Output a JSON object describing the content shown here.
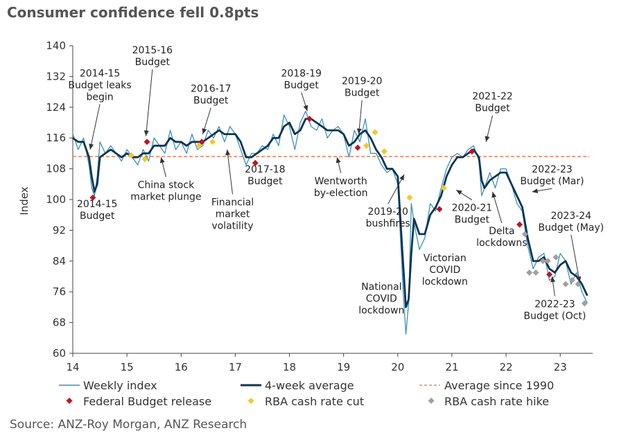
{
  "title": "Consumer confidence fell 0.8pts",
  "source": "Source: ANZ-Roy Morgan, ANZ Research",
  "colors": {
    "weekly": "#3a8fc0",
    "avg4": "#0d3550",
    "average_line": "#e8866a",
    "budget": "#c0141c",
    "cut": "#f3c92a",
    "hike": "#a0a0a0"
  },
  "chart_data": {
    "type": "line",
    "ylabel": "Index",
    "xlabel": "",
    "ylim": [
      60,
      140
    ],
    "xlim": [
      14,
      23.6
    ],
    "yticks": [
      60,
      68,
      76,
      84,
      92,
      100,
      108,
      116,
      124,
      132,
      140
    ],
    "xticks": [
      "14",
      "15",
      "16",
      "17",
      "18",
      "19",
      "20",
      "21",
      "22",
      "23"
    ],
    "grid": false,
    "legend_position": "bottom",
    "average_since_1990": 111.2,
    "series": [
      {
        "name": "Weekly index",
        "x": [
          14.0,
          14.1,
          14.2,
          14.3,
          14.35,
          14.4,
          14.45,
          14.5,
          14.6,
          14.7,
          14.8,
          14.9,
          15.0,
          15.1,
          15.2,
          15.3,
          15.4,
          15.5,
          15.6,
          15.7,
          15.8,
          15.9,
          16.0,
          16.1,
          16.2,
          16.3,
          16.4,
          16.5,
          16.6,
          16.7,
          16.8,
          16.9,
          17.0,
          17.1,
          17.2,
          17.3,
          17.4,
          17.5,
          17.6,
          17.7,
          17.8,
          17.9,
          18.0,
          18.1,
          18.2,
          18.3,
          18.4,
          18.5,
          18.6,
          18.7,
          18.8,
          18.9,
          19.0,
          19.1,
          19.2,
          19.3,
          19.4,
          19.5,
          19.6,
          19.7,
          19.8,
          19.9,
          20.0,
          20.1,
          20.15,
          20.2,
          20.25,
          20.3,
          20.4,
          20.5,
          20.6,
          20.7,
          20.8,
          20.9,
          21.0,
          21.1,
          21.2,
          21.3,
          21.4,
          21.5,
          21.55,
          21.6,
          21.7,
          21.8,
          21.9,
          22.0,
          22.1,
          22.2,
          22.3,
          22.4,
          22.5,
          22.6,
          22.7,
          22.8,
          22.9,
          23.0,
          23.1,
          23.2,
          23.3,
          23.4,
          23.5
        ],
        "values": [
          117,
          113,
          116,
          109,
          103,
          101,
          106,
          115,
          112,
          114,
          112,
          110,
          113,
          111,
          109,
          113,
          110,
          116,
          114,
          112,
          118,
          113,
          115,
          112,
          117,
          113,
          114,
          118,
          116,
          119,
          115,
          119,
          117,
          113,
          109,
          112,
          112,
          114,
          113,
          117,
          114,
          122,
          119,
          113,
          120,
          123,
          119,
          118,
          121,
          116,
          118,
          119,
          117,
          111,
          118,
          115,
          121,
          112,
          112,
          109,
          107,
          108,
          104,
          76,
          65,
          73,
          99,
          94,
          87,
          90,
          99,
          97,
          103,
          108,
          111,
          112,
          111,
          113,
          114,
          110,
          101,
          103,
          107,
          103,
          108,
          108,
          104,
          99,
          97,
          88,
          82,
          85,
          86,
          79,
          80,
          86,
          84,
          78,
          81,
          76,
          73
        ]
      },
      {
        "name": "4-week average",
        "x": [
          14.0,
          14.1,
          14.2,
          14.3,
          14.35,
          14.4,
          14.45,
          14.5,
          14.6,
          14.7,
          14.8,
          14.9,
          15.0,
          15.1,
          15.2,
          15.3,
          15.4,
          15.5,
          15.6,
          15.7,
          15.8,
          15.9,
          16.0,
          16.1,
          16.2,
          16.3,
          16.4,
          16.5,
          16.6,
          16.7,
          16.8,
          16.9,
          17.0,
          17.1,
          17.2,
          17.3,
          17.4,
          17.5,
          17.6,
          17.7,
          17.8,
          17.9,
          18.0,
          18.1,
          18.2,
          18.3,
          18.4,
          18.5,
          18.6,
          18.7,
          18.8,
          18.9,
          19.0,
          19.1,
          19.2,
          19.3,
          19.4,
          19.5,
          19.6,
          19.7,
          19.8,
          19.9,
          20.0,
          20.1,
          20.15,
          20.2,
          20.25,
          20.3,
          20.4,
          20.5,
          20.6,
          20.7,
          20.8,
          20.9,
          21.0,
          21.1,
          21.2,
          21.3,
          21.4,
          21.5,
          21.55,
          21.6,
          21.7,
          21.8,
          21.9,
          22.0,
          22.1,
          22.2,
          22.3,
          22.4,
          22.5,
          22.6,
          22.7,
          22.8,
          22.9,
          23.0,
          23.1,
          23.2,
          23.3,
          23.4,
          23.5
        ],
        "values": [
          116,
          115,
          115,
          111,
          106,
          102,
          104,
          111,
          112,
          113,
          112,
          111,
          112,
          111,
          111,
          112,
          112,
          114,
          114,
          114,
          116,
          115,
          115,
          114,
          115,
          115,
          115,
          116,
          117,
          118,
          117,
          117,
          117,
          115,
          111,
          111,
          112,
          113,
          114,
          116,
          116,
          119,
          120,
          117,
          118,
          121,
          121,
          120,
          119,
          118,
          118,
          118,
          117,
          114,
          115,
          117,
          118,
          116,
          113,
          111,
          108,
          108,
          106,
          83,
          72,
          74,
          86,
          95,
          91,
          91,
          96,
          98,
          101,
          106,
          109,
          111,
          111,
          112,
          113,
          111,
          105,
          103,
          105,
          106,
          107,
          107,
          104,
          101,
          98,
          90,
          84,
          84,
          85,
          82,
          81,
          83,
          84,
          81,
          80,
          78,
          75
        ]
      },
      {
        "name": "Average since 1990"
      },
      {
        "name": "Federal Budget release",
        "x": [
          14.37,
          15.37,
          16.38,
          17.37,
          18.37,
          19.26,
          20.77,
          21.37,
          22.25,
          22.8
        ],
        "values": [
          100.5,
          115,
          115,
          109.5,
          121,
          113.5,
          97.5,
          112.5,
          93.5,
          80.5
        ]
      },
      {
        "name": "RBA cash rate cut",
        "x": [
          15.08,
          15.33,
          16.33,
          16.58,
          19.42,
          19.58,
          19.75,
          20.22,
          20.85
        ],
        "values": [
          111.5,
          110.5,
          114,
          115,
          114,
          117.5,
          112.5,
          100.5,
          103
        ]
      },
      {
        "name": "RBA cash rate hike",
        "x": [
          22.35,
          22.43,
          22.55,
          22.68,
          22.77,
          22.92,
          23.1,
          23.22,
          23.33,
          23.45
        ],
        "values": [
          91,
          81,
          81,
          84,
          84,
          85,
          78,
          79,
          78,
          73
        ]
      }
    ],
    "annotations": [
      {
        "lines": [
          "2014-15",
          "Budget leaks",
          "begin"
        ],
        "x": 14.5,
        "y": 132,
        "arrow_to": [
          14.32,
          113
        ]
      },
      {
        "lines": [
          "2014-15",
          "Budget"
        ],
        "x": 14.45,
        "y": 98,
        "arrow_to": null
      },
      {
        "lines": [
          "2015-16",
          "Budget"
        ],
        "x": 15.47,
        "y": 138,
        "arrow_to": [
          15.35,
          116.5
        ]
      },
      {
        "lines": [
          "China stock",
          "market plunge"
        ],
        "x": 15.72,
        "y": 103,
        "arrow_to": [
          15.63,
          111
        ]
      },
      {
        "lines": [
          "2016-17",
          "Budget"
        ],
        "x": 16.55,
        "y": 128,
        "arrow_to": [
          16.4,
          117
        ]
      },
      {
        "lines": [
          "Financial",
          "market",
          "volatility"
        ],
        "x": 16.95,
        "y": 98.5,
        "arrow_to": [
          16.85,
          113
        ]
      },
      {
        "lines": [
          "2017-18",
          "Budget"
        ],
        "x": 17.55,
        "y": 107,
        "arrow_to": null
      },
      {
        "lines": [
          "2018-19",
          "Budget"
        ],
        "x": 18.22,
        "y": 132,
        "arrow_to": [
          18.33,
          123
        ]
      },
      {
        "lines": [
          "2019-20",
          "Budget"
        ],
        "x": 19.34,
        "y": 130,
        "arrow_to": [
          19.28,
          117
        ]
      },
      {
        "lines": [
          "Wentworth",
          "by-election"
        ],
        "x": 18.95,
        "y": 104,
        "arrow_to": [
          18.88,
          111
        ]
      },
      {
        "lines": [
          "2019-20",
          "bushfires"
        ],
        "x": 19.82,
        "y": 96,
        "arrow_to": [
          20.12,
          106.5
        ]
      },
      {
        "lines": [
          "Victorian",
          "COVID",
          "lockdown"
        ],
        "x": 20.87,
        "y": 84,
        "arrow_to": null
      },
      {
        "lines": [
          "National",
          "COVID",
          "lockdown"
        ],
        "x": 19.7,
        "y": 76.5,
        "arrow_to": null
      },
      {
        "lines": [
          "2021-22",
          "Budget"
        ],
        "x": 21.75,
        "y": 126,
        "arrow_to": [
          21.63,
          115
        ]
      },
      {
        "lines": [
          "2020-21",
          "Budget"
        ],
        "x": 21.37,
        "y": 97,
        "arrow_to": [
          21.08,
          102.5
        ]
      },
      {
        "lines": [
          "Delta",
          "lockdowns"
        ],
        "x": 21.92,
        "y": 91,
        "arrow_to": [
          21.75,
          102
        ]
      },
      {
        "lines": [
          "2022-23",
          "Budget (Mar)"
        ],
        "x": 22.85,
        "y": 107,
        "arrow_to": [
          22.48,
          102
        ]
      },
      {
        "lines": [
          "2023-24",
          "Budget (May)"
        ],
        "x": 23.2,
        "y": 95,
        "arrow_to": [
          23.36,
          78.5
        ]
      },
      {
        "lines": [
          "2022-23",
          "Budget (Oct)"
        ],
        "x": 22.9,
        "y": 72,
        "arrow_to": [
          22.85,
          80
        ]
      }
    ]
  }
}
